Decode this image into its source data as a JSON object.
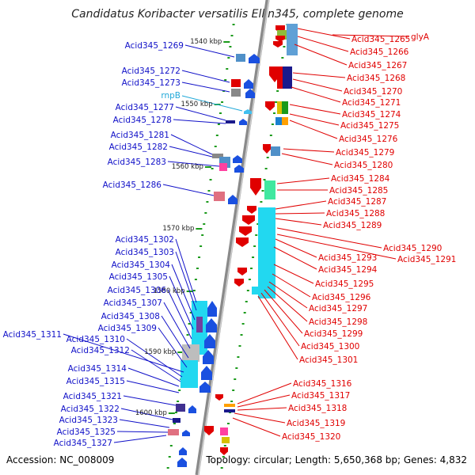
{
  "title": "Candidatus Koribacter versatilis Ellin345, complete genome",
  "accession": "Accession: NC_008009",
  "summary": "Topology: circular; Length: 5,650,368 bp; Genes: 4,832",
  "colors": {
    "left_label": "#1010c8",
    "right_label": "#e00000",
    "rna_label": "#20a8d8"
  },
  "kbp_marks": [
    "1540 kbp",
    "1550 kbp",
    "1560 kbp",
    "1570 kbp",
    "1580 kbp",
    "1590 kbp",
    "1600 kbp"
  ],
  "left_labels": [
    "Acid345_1269",
    "Acid345_1272",
    "Acid345_1273",
    "Acid345_1277",
    "Acid345_1278",
    "Acid345_1281",
    "Acid345_1282",
    "Acid345_1283",
    "Acid345_1286",
    "Acid345_1302",
    "Acid345_1303",
    "Acid345_1304",
    "Acid345_1305",
    "Acid345_1306",
    "Acid345_1307",
    "Acid345_1308",
    "Acid345_1309",
    "Acid345_1311",
    "Acid345_1310",
    "Acid345_1312",
    "Acid345_1314",
    "Acid345_1315",
    "Acid345_1321",
    "Acid345_1322",
    "Acid345_1323",
    "Acid345_1325",
    "Acid345_1327"
  ],
  "rna_label": "rnpB",
  "right_labels": [
    "Acid345_1265",
    "glyA",
    "Acid345_1266",
    "Acid345_1267",
    "Acid345_1268",
    "Acid345_1270",
    "Acid345_1271",
    "Acid345_1274",
    "Acid345_1275",
    "Acid345_1276",
    "Acid345_1279",
    "Acid345_1280",
    "Acid345_1284",
    "Acid345_1285",
    "Acid345_1287",
    "Acid345_1288",
    "Acid345_1289",
    "Acid345_1290",
    "Acid345_1291",
    "Acid345_1293",
    "Acid345_1294",
    "Acid345_1295",
    "Acid345_1296",
    "Acid345_1297",
    "Acid345_1298",
    "Acid345_1299",
    "Acid345_1300",
    "Acid345_1301",
    "Acid345_1316",
    "Acid345_1317",
    "Acid345_1318",
    "Acid345_1319",
    "Acid345_1320"
  ]
}
